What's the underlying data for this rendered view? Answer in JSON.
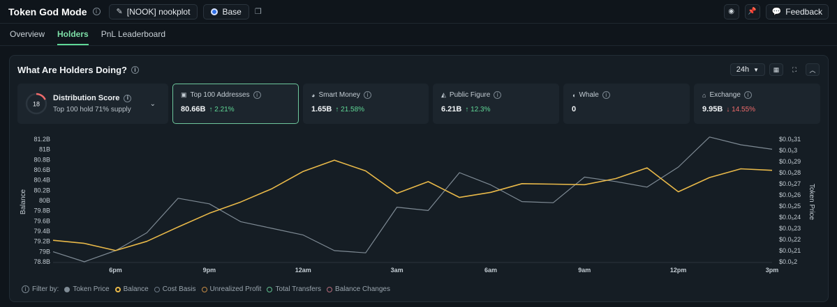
{
  "header": {
    "brand": "Token God Mode",
    "token_label": "[NOOK] nookplot",
    "chain_label": "Base",
    "feedback_label": "Feedback"
  },
  "tabs": [
    {
      "label": "Overview",
      "active": false
    },
    {
      "label": "Holders",
      "active": true
    },
    {
      "label": "PnL Leaderboard",
      "active": false
    }
  ],
  "panel": {
    "title": "What Are Holders Doing?",
    "timeframe": "24h"
  },
  "distribution": {
    "score": "18",
    "score_fraction": 0.18,
    "title": "Distribution Score",
    "subtitle": "Top 100 hold 71% supply"
  },
  "cards": [
    {
      "label": "Top 100 Addresses",
      "value": "80.66B",
      "change": "↑ 2.21%",
      "direction": "up",
      "icon": "wallet-icon",
      "active": true
    },
    {
      "label": "Smart Money",
      "value": "1.65B",
      "change": "↑ 21.58%",
      "direction": "up",
      "icon": "brain-icon",
      "active": false
    },
    {
      "label": "Public Figure",
      "value": "6.21B",
      "change": "↑ 12.3%",
      "direction": "up",
      "icon": "megaphone-icon",
      "active": false
    },
    {
      "label": "Whale",
      "value": "0",
      "change": "",
      "direction": "none",
      "icon": "whale-icon",
      "active": false
    },
    {
      "label": "Exchange",
      "value": "9.95B",
      "change": "↓ 14.55%",
      "direction": "down",
      "icon": "bank-icon",
      "active": false
    }
  ],
  "chart_data": {
    "type": "line",
    "ylabel": "Balance",
    "y2label": "Token Price",
    "x_ticks": [
      "6pm",
      "9pm",
      "12am",
      "3am",
      "6am",
      "9am",
      "12pm",
      "3pm"
    ],
    "y_ticks": [
      "81.2B",
      "81B",
      "80.8B",
      "80.6B",
      "80.4B",
      "80.2B",
      "80B",
      "79.8B",
      "79.6B",
      "79.4B",
      "79.2B",
      "79B",
      "78.8B"
    ],
    "y2_ticks": [
      "$0.0₅31",
      "$0.0₅3",
      "$0.0₅29",
      "$0.0₅28",
      "$0.0₅27",
      "$0.0₅26",
      "$0.0₅25",
      "$0.0₅24",
      "$0.0₅23",
      "$0.0₅22",
      "$0.0₅21",
      "$0.0₅2"
    ],
    "ylim": [
      78.8,
      81.2
    ],
    "y2lim": [
      0.2,
      0.31
    ],
    "x_hours": [
      -2,
      21
    ],
    "series": [
      {
        "name": "Balance",
        "axis": "left",
        "color": "#e9b949",
        "x": [
          -2,
          -1,
          0,
          1,
          2,
          3,
          4,
          5,
          6,
          7,
          8,
          9,
          10,
          11,
          12,
          13,
          14,
          15,
          16,
          17,
          18,
          19,
          20,
          21
        ],
        "values": [
          79.22,
          79.16,
          79.02,
          79.2,
          79.48,
          79.75,
          79.97,
          80.23,
          80.57,
          80.79,
          80.58,
          80.14,
          80.37,
          80.06,
          80.16,
          80.33,
          80.32,
          80.31,
          80.43,
          80.64,
          80.17,
          80.45,
          80.62,
          80.59
        ]
      },
      {
        "name": "Token Price",
        "axis": "right",
        "color": "#7f8b95",
        "x": [
          -2,
          -1,
          0,
          1,
          2,
          3,
          4,
          5,
          6,
          7,
          8,
          9,
          10,
          11,
          12,
          13,
          14,
          15,
          16,
          17,
          18,
          19,
          20,
          21
        ],
        "values": [
          0.209,
          0.2,
          0.21,
          0.226,
          0.257,
          0.252,
          0.236,
          0.23,
          0.224,
          0.21,
          0.208,
          0.249,
          0.246,
          0.28,
          0.269,
          0.254,
          0.253,
          0.276,
          0.272,
          0.267,
          0.285,
          0.312,
          0.305,
          0.301
        ]
      }
    ]
  },
  "legend": {
    "filter_label": "Filter by:",
    "items": [
      {
        "label": "Token Price",
        "color": "#7f8b95",
        "filled": true
      },
      {
        "label": "Balance",
        "color": "#e9b949",
        "filled": true
      },
      {
        "label": "Cost Basis",
        "color": "#6b7785",
        "filled": false
      },
      {
        "label": "Unrealized Profit",
        "color": "#c58b45",
        "filled": false
      },
      {
        "label": "Total Transfers",
        "color": "#5fbf8e",
        "filled": false
      },
      {
        "label": "Balance Changes",
        "color": "#b66a7a",
        "filled": false
      }
    ]
  }
}
